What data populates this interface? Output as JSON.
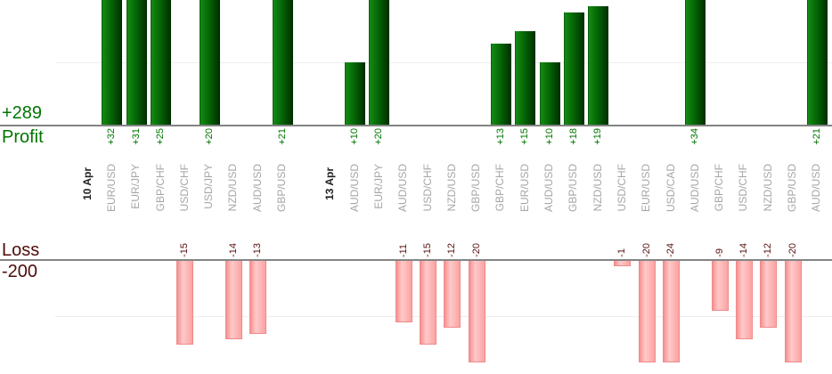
{
  "colors": {
    "profit_text": "#007500",
    "loss_text": "#5a1212",
    "loss_header_text": "#4f0b0b",
    "pair_label": "#a6a6a6",
    "date_label": "#222222",
    "bar_green_start": "#168916",
    "bar_green_end": "#002d00",
    "bar_pink_start": "#f79090",
    "bar_pink_mid": "#ffc9c9",
    "bar_pink_end": "#fba3a3",
    "bar_pink_border": "#ee8a8a",
    "axis_line": "#848484",
    "gridline": "#ededed"
  },
  "chart_data": {
    "type": "bar",
    "title": "",
    "xlabel": "",
    "ylabel": "",
    "layout": {
      "panels_stacked": "profit above, loss below",
      "bars_rotated_labels": true,
      "gridline_step": 10,
      "legend": "none"
    },
    "panels": [
      {
        "name": "Profit",
        "total": 289,
        "total_label": "+289",
        "visible_range": [
          0,
          20
        ],
        "bar_style": "dark-green-gradient"
      },
      {
        "name": "Loss",
        "total": -200,
        "total_label": "-200",
        "visible_range": [
          -18.3,
          0
        ],
        "bar_style": "pink-gradient"
      }
    ],
    "columns": [
      {
        "kind": "date",
        "label": "10 Apr",
        "value": null
      },
      {
        "kind": "pair",
        "label": "EUR/USD",
        "value": 32
      },
      {
        "kind": "pair",
        "label": "EUR/JPY",
        "value": 31
      },
      {
        "kind": "pair",
        "label": "GBP/CHF",
        "value": 25
      },
      {
        "kind": "pair",
        "label": "USD/CHF",
        "value": -15
      },
      {
        "kind": "pair",
        "label": "USD/JPY",
        "value": 20
      },
      {
        "kind": "pair",
        "label": "NZD/USD",
        "value": -14
      },
      {
        "kind": "pair",
        "label": "AUD/USD",
        "value": -13
      },
      {
        "kind": "pair",
        "label": "GBP/USD",
        "value": 21
      },
      {
        "kind": "date",
        "label": "13 Apr",
        "value": null
      },
      {
        "kind": "pair",
        "label": "AUD/USD",
        "value": 10
      },
      {
        "kind": "pair",
        "label": "EUR/JPY",
        "value": 20
      },
      {
        "kind": "pair",
        "label": "AUD/USD",
        "value": -11
      },
      {
        "kind": "pair",
        "label": "USD/CHF",
        "value": -15
      },
      {
        "kind": "pair",
        "label": "NZD/USD",
        "value": -12
      },
      {
        "kind": "pair",
        "label": "GBP/USD",
        "value": -20
      },
      {
        "kind": "pair",
        "label": "GBP/CHF",
        "value": 13
      },
      {
        "kind": "pair",
        "label": "EUR/USD",
        "value": 15
      },
      {
        "kind": "pair",
        "label": "AUD/USD",
        "value": 10
      },
      {
        "kind": "pair",
        "label": "GBP/USD",
        "value": 18
      },
      {
        "kind": "pair",
        "label": "NZD/USD",
        "value": 19
      },
      {
        "kind": "pair",
        "label": "USD/CHF",
        "value": -1
      },
      {
        "kind": "pair",
        "label": "EUR/USD",
        "value": -20
      },
      {
        "kind": "pair",
        "label": "USD/CAD",
        "value": -24
      },
      {
        "kind": "pair",
        "label": "AUD/USD",
        "value": 34
      },
      {
        "kind": "pair",
        "label": "GBP/CHF",
        "value": -9
      },
      {
        "kind": "pair",
        "label": "USD/CHF",
        "value": -14
      },
      {
        "kind": "pair",
        "label": "NZD/USD",
        "value": -12
      },
      {
        "kind": "pair",
        "label": "GBP/USD",
        "value": -20
      },
      {
        "kind": "pair",
        "label": "AUD/USD",
        "value": 21
      }
    ]
  }
}
